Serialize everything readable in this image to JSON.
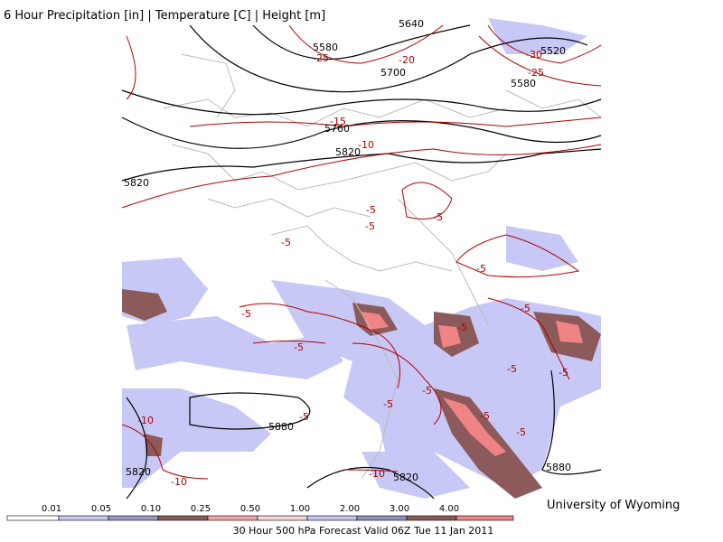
{
  "header": {
    "title": "6 Hour Precipitation [in] | Temperature [C] | Height [m]"
  },
  "map": {
    "height_labels": [
      "5640",
      "5580",
      "5700",
      "5760",
      "5820",
      "5820",
      "5520",
      "5580",
      "5880",
      "5880",
      "5820",
      "5820"
    ],
    "temperature_labels": [
      "-25",
      "-20",
      "-30",
      "-25",
      "-15",
      "-10",
      "-5",
      "-5",
      "-5",
      "-5",
      "-5",
      "-5",
      "-5",
      "-5",
      "-5",
      "-5",
      "-5",
      "-5",
      "-5",
      "-5",
      "-10",
      "-10",
      "-10",
      "-5",
      "-5"
    ]
  },
  "legend": {
    "ticks": [
      "0.01",
      "0.05",
      "0.10",
      "0.25",
      "0.50",
      "1.00",
      "2.00",
      "3.00",
      "4.00"
    ],
    "colors": [
      "#ffffff",
      "#c8c8f6",
      "#9898c8",
      "#8a5c5c",
      "#f0a4a4",
      "#f8d4d4",
      "#c4c4ee",
      "#8e8ebe",
      "#8c5a5a",
      "#f08484"
    ]
  },
  "footer": {
    "caption": "30 Hour 500 hPa Forecast Valid 06Z Tue 11 Jan 2011",
    "credit": "University of Wyoming"
  }
}
